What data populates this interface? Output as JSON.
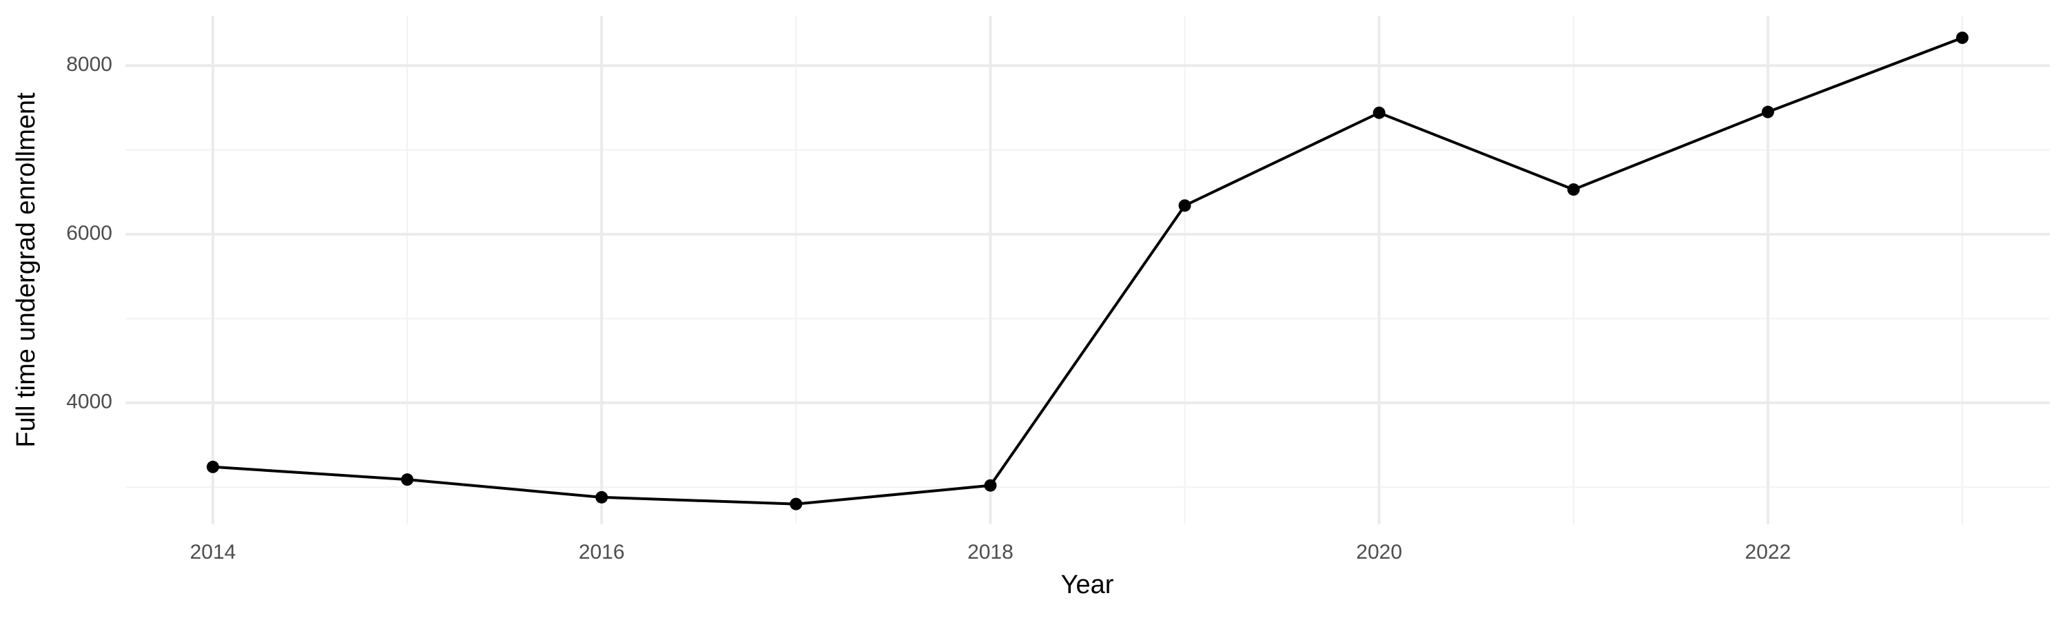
{
  "chart_data": {
    "type": "line",
    "x_label": "Year",
    "y_label": "Full time undergrad enrollment",
    "x": [
      2014,
      2015,
      2016,
      2017,
      2018,
      2019,
      2020,
      2021,
      2022,
      2023
    ],
    "values": [
      3240,
      3090,
      2880,
      2800,
      3020,
      6340,
      7440,
      6530,
      7450,
      8330
    ],
    "color": "#000000",
    "xlim": [
      2013.55,
      2023.45
    ],
    "xticks": [
      2014,
      2016,
      2018,
      2020,
      2022
    ],
    "minor_xticks": [
      2015,
      2017,
      2019,
      2021,
      2023
    ],
    "ylim": [
      2560,
      8590
    ],
    "yticks": [
      4000,
      6000,
      8000
    ],
    "minor_yticks": [
      3000,
      5000,
      7000
    ],
    "grid": true
  }
}
